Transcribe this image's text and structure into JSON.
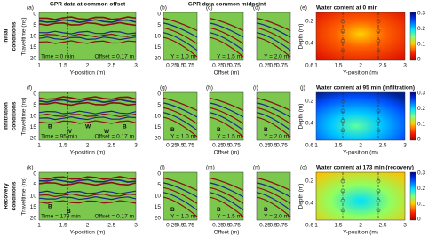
{
  "figure": {
    "column_titles": {
      "offset": "GPR data at common offset",
      "midpoint": "GPR data common midpoint"
    },
    "axes": {
      "traveltime_label": "Traveltime (ns)",
      "traveltime_ticks": [
        0,
        5,
        10,
        15,
        20
      ],
      "yposition_label": "Y-position (m)",
      "yposition_ticks": [
        1,
        1.5,
        2,
        2.5,
        3
      ],
      "offset_label": "Offset (m)",
      "offset_ticks": [
        0.25,
        0.5,
        0.75
      ],
      "depth_label": "Depth (m)",
      "depth_ticks": [
        0.2,
        0.4,
        0.6
      ],
      "colorbar_ticks": [
        0,
        0.1,
        0.2,
        0.3
      ]
    },
    "rows": [
      {
        "label": [
          "Initial",
          "conditions"
        ],
        "offset_panel": {
          "letter": "(a)",
          "time": "Time = 0 min",
          "offset": "Offset = 0.17 m",
          "annotations": []
        },
        "midpoint_panels": [
          {
            "letter": "(b)",
            "position": "Y = 1.0 m",
            "annotations": []
          },
          {
            "letter": "(c)",
            "position": "Y = 1.5 m",
            "annotations": []
          },
          {
            "letter": "(d)",
            "position": "Y = 2.0 m",
            "annotations": []
          }
        ],
        "water_panel": {
          "letter": "(e)",
          "title": "Water content at 0 min"
        }
      },
      {
        "label": [
          "Infiltration",
          "conditions"
        ],
        "offset_panel": {
          "letter": "(f)",
          "time": "Time = 95 min",
          "offset": "Offset = 0.17 m",
          "annotations": [
            "B",
            "IV",
            "W",
            "W",
            "B"
          ]
        },
        "midpoint_panels": [
          {
            "letter": "(g)",
            "position": "Y = 1.0 m",
            "annotations": [
              "B"
            ]
          },
          {
            "letter": "(h)",
            "position": "Y = 1.5 m",
            "annotations": [
              "B"
            ]
          },
          {
            "letter": "(i)",
            "position": "Y = 2.0 m",
            "annotations": [
              "B"
            ]
          }
        ],
        "water_panel": {
          "letter": "(j)",
          "title": "Water content at 95 min (infiltration)"
        }
      },
      {
        "label": [
          "Recovery",
          "conditions"
        ],
        "offset_panel": {
          "letter": "(k)",
          "time": "Time = 173 min",
          "offset": "Offset = 0.17 m",
          "annotations": [
            "B",
            "B"
          ]
        },
        "midpoint_panels": [
          {
            "letter": "(l)",
            "position": "Y = 1.0 m",
            "annotations": [
              "B"
            ]
          },
          {
            "letter": "(m)",
            "position": "Y = 1.5 m",
            "annotations": [
              "B"
            ]
          },
          {
            "letter": "(n)",
            "position": "Y = 2.0 m",
            "annotations": [
              "B"
            ]
          }
        ],
        "water_panel": {
          "letter": "(o)",
          "title": "Water content at 173 min (recovery)"
        }
      }
    ]
  }
}
